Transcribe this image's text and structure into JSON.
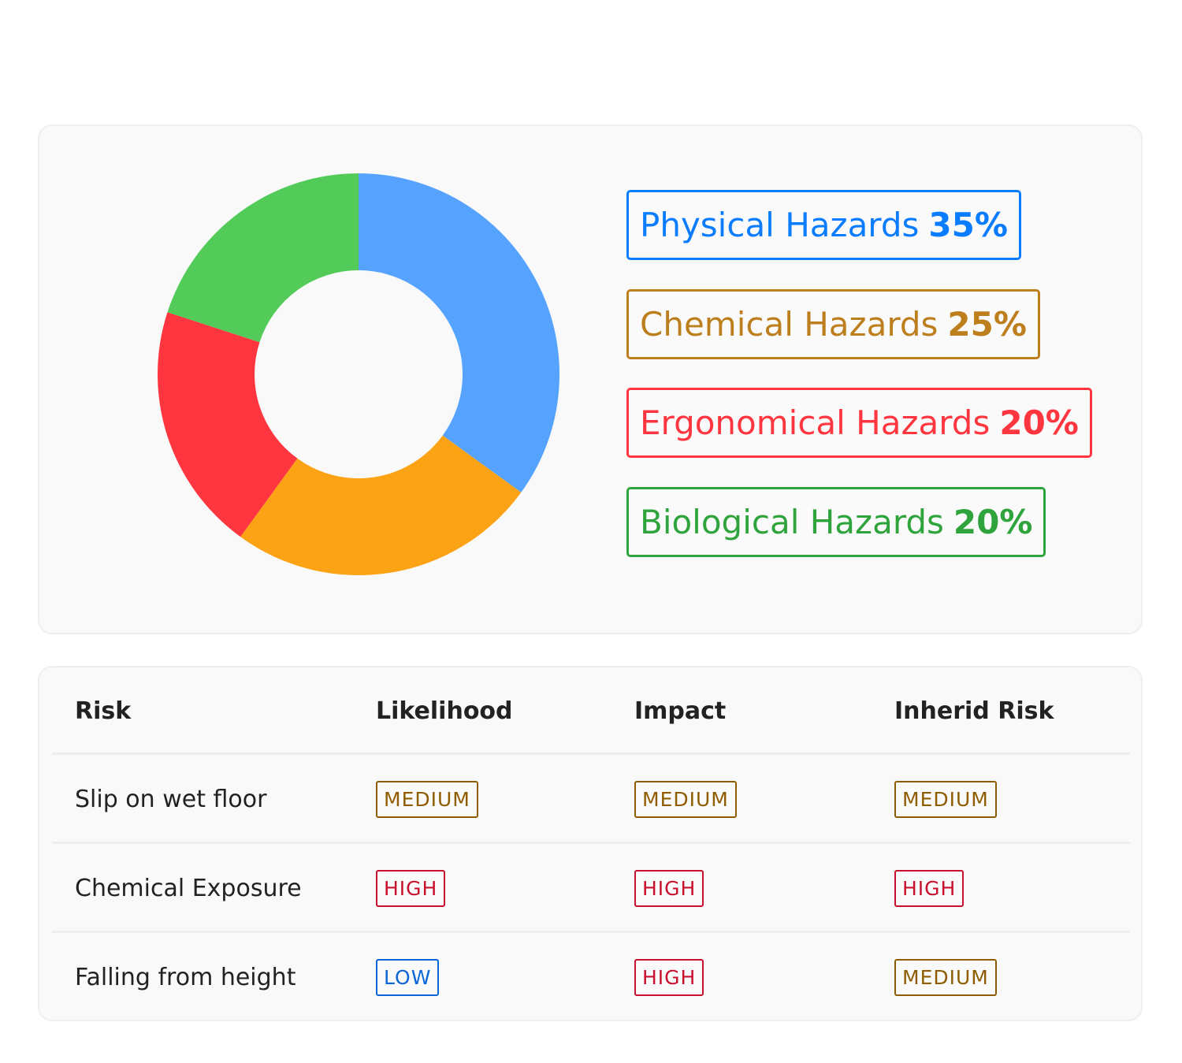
{
  "chart_data": {
    "type": "pie",
    "donut": true,
    "categories": [
      "Physical Hazards",
      "Chemical Hazards",
      "Ergonomical Hazards",
      "Biological Hazards"
    ],
    "values": [
      35,
      25,
      20,
      20
    ],
    "value_labels": [
      "35%",
      "25%",
      "20%",
      "20%"
    ],
    "colors": [
      "#56a3ff",
      "#fba314",
      "#ff3640",
      "#52cb59"
    ],
    "legend_colors": [
      "#0a7cff",
      "#bd7f1d",
      "#ff3640",
      "#30a43c"
    ],
    "legend_placement": "right"
  },
  "table": {
    "headers": [
      "Risk",
      "Likelihood",
      "Impact",
      "Inherid Risk"
    ],
    "rows": [
      {
        "risk": "Slip on wet floor",
        "levels": [
          "MEDIUM",
          "MEDIUM",
          "MEDIUM"
        ]
      },
      {
        "risk": "Chemical Exposure",
        "levels": [
          "HIGH",
          "HIGH",
          "HIGH"
        ]
      },
      {
        "risk": "Falling from height",
        "levels": [
          "LOW",
          "HIGH",
          "MEDIUM"
        ]
      }
    ],
    "level_colors": {
      "LOW": "#0a66d8",
      "MEDIUM": "#8f5d00",
      "HIGH": "#c8102e"
    }
  }
}
